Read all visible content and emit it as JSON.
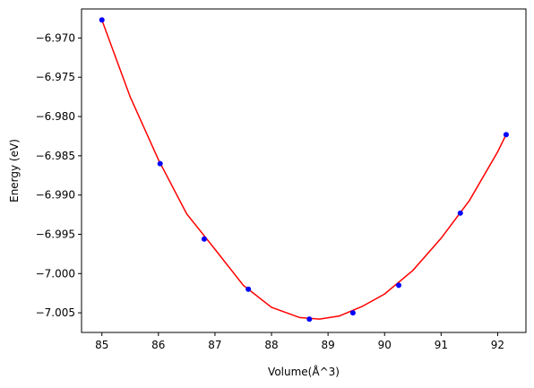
{
  "chart_data": {
    "type": "scatter",
    "title": "",
    "xlabel": "Volume(Å^3)",
    "ylabel": "Energy (eV)",
    "xlim": [
      84.64,
      92.5
    ],
    "ylim": [
      -7.0075,
      -6.9663
    ],
    "xticks": [
      85,
      86,
      87,
      88,
      89,
      90,
      91,
      92
    ],
    "xtick_labels": [
      "85",
      "86",
      "87",
      "88",
      "89",
      "90",
      "91",
      "92"
    ],
    "yticks": [
      -6.97,
      -6.975,
      -6.98,
      -6.985,
      -6.99,
      -6.995,
      -7.0,
      -7.005
    ],
    "ytick_labels": [
      "−6.970",
      "−6.975",
      "−6.980",
      "−6.985",
      "−6.990",
      "−6.995",
      "−7.000",
      "−7.005"
    ],
    "grid": false,
    "legend": "none",
    "series": [
      {
        "kind": "points",
        "color": "#0000ff",
        "x": [
          85.0,
          86.03,
          86.81,
          87.59,
          88.67,
          89.44,
          90.25,
          91.34,
          92.15
        ],
        "y": [
          -6.9677,
          -6.986,
          -6.9956,
          -7.002,
          -7.0058,
          -7.005,
          -7.0015,
          -6.9923,
          -6.9823
        ]
      },
      {
        "kind": "fit-line",
        "color": "#ff0000",
        "x": [
          85.0,
          85.5,
          86.0,
          86.5,
          87.0,
          87.5,
          88.0,
          88.5,
          88.85,
          89.2,
          89.6,
          90.0,
          90.5,
          91.0,
          91.5,
          92.0,
          92.15
        ],
        "y": [
          -6.9677,
          -6.9775,
          -6.9855,
          -6.9924,
          -6.9969,
          -7.0015,
          -7.0043,
          -7.0056,
          -7.0058,
          -7.0054,
          -7.0042,
          -7.0026,
          -6.9996,
          -6.9955,
          -6.9907,
          -6.9845,
          -6.9823
        ]
      }
    ]
  }
}
